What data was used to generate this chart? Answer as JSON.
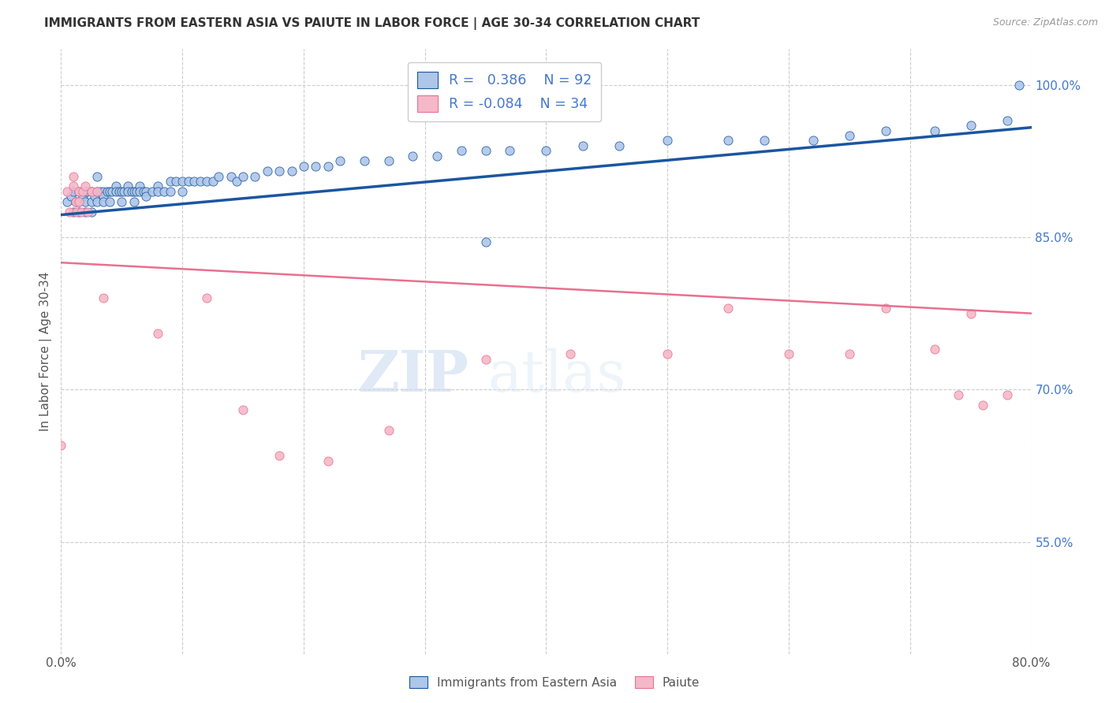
{
  "title": "IMMIGRANTS FROM EASTERN ASIA VS PAIUTE IN LABOR FORCE | AGE 30-34 CORRELATION CHART",
  "source": "Source: ZipAtlas.com",
  "ylabel": "In Labor Force | Age 30-34",
  "xlim": [
    0.0,
    0.8
  ],
  "ylim": [
    0.44,
    1.035
  ],
  "xticks": [
    0.0,
    0.1,
    0.2,
    0.3,
    0.4,
    0.5,
    0.6,
    0.7,
    0.8
  ],
  "xticklabels": [
    "0.0%",
    "",
    "",
    "",
    "",
    "",
    "",
    "",
    "80.0%"
  ],
  "yticks_right": [
    0.55,
    0.7,
    0.85,
    1.0
  ],
  "yticklabels_right": [
    "55.0%",
    "70.0%",
    "85.0%",
    "100.0%"
  ],
  "blue_R": 0.386,
  "blue_N": 92,
  "pink_R": -0.084,
  "pink_N": 34,
  "blue_color": "#aec6e8",
  "blue_line_color": "#1a56a0",
  "pink_color": "#f5b8c8",
  "pink_line_color": "#e87090",
  "legend_blue_label": "Immigrants from Eastern Asia",
  "legend_pink_label": "Paiute",
  "watermark_zip": "ZIP",
  "watermark_atlas": "atlas",
  "background_color": "#ffffff",
  "grid_color": "#cccccc",
  "title_color": "#333333",
  "axis_label_color": "#555555",
  "right_axis_color": "#4477cc",
  "blue_scatter_x": [
    0.005,
    0.008,
    0.01,
    0.01,
    0.012,
    0.015,
    0.015,
    0.015,
    0.018,
    0.02,
    0.02,
    0.02,
    0.022,
    0.025,
    0.025,
    0.025,
    0.028,
    0.03,
    0.03,
    0.03,
    0.032,
    0.035,
    0.035,
    0.035,
    0.038,
    0.04,
    0.04,
    0.042,
    0.045,
    0.045,
    0.048,
    0.05,
    0.05,
    0.052,
    0.055,
    0.055,
    0.058,
    0.06,
    0.06,
    0.062,
    0.065,
    0.065,
    0.068,
    0.07,
    0.07,
    0.075,
    0.08,
    0.08,
    0.085,
    0.09,
    0.09,
    0.095,
    0.1,
    0.1,
    0.105,
    0.11,
    0.115,
    0.12,
    0.125,
    0.13,
    0.14,
    0.145,
    0.15,
    0.16,
    0.17,
    0.18,
    0.19,
    0.2,
    0.21,
    0.22,
    0.23,
    0.25,
    0.27,
    0.29,
    0.31,
    0.33,
    0.35,
    0.37,
    0.4,
    0.43,
    0.46,
    0.5,
    0.55,
    0.58,
    0.62,
    0.65,
    0.68,
    0.72,
    0.75,
    0.78,
    0.35,
    0.79
  ],
  "blue_scatter_y": [
    0.885,
    0.89,
    0.875,
    0.895,
    0.885,
    0.895,
    0.885,
    0.875,
    0.89,
    0.895,
    0.885,
    0.875,
    0.895,
    0.895,
    0.885,
    0.875,
    0.89,
    0.91,
    0.895,
    0.885,
    0.895,
    0.895,
    0.89,
    0.885,
    0.895,
    0.895,
    0.885,
    0.895,
    0.9,
    0.895,
    0.895,
    0.895,
    0.885,
    0.895,
    0.9,
    0.895,
    0.895,
    0.895,
    0.885,
    0.895,
    0.9,
    0.895,
    0.895,
    0.895,
    0.89,
    0.895,
    0.9,
    0.895,
    0.895,
    0.905,
    0.895,
    0.905,
    0.905,
    0.895,
    0.905,
    0.905,
    0.905,
    0.905,
    0.905,
    0.91,
    0.91,
    0.905,
    0.91,
    0.91,
    0.915,
    0.915,
    0.915,
    0.92,
    0.92,
    0.92,
    0.925,
    0.925,
    0.925,
    0.93,
    0.93,
    0.935,
    0.935,
    0.935,
    0.935,
    0.94,
    0.94,
    0.945,
    0.945,
    0.945,
    0.945,
    0.95,
    0.955,
    0.955,
    0.96,
    0.965,
    0.845,
    1.0
  ],
  "pink_scatter_x": [
    0.0,
    0.005,
    0.007,
    0.01,
    0.01,
    0.012,
    0.013,
    0.015,
    0.015,
    0.017,
    0.018,
    0.02,
    0.022,
    0.025,
    0.03,
    0.035,
    0.08,
    0.12,
    0.15,
    0.18,
    0.22,
    0.27,
    0.35,
    0.42,
    0.5,
    0.55,
    0.6,
    0.65,
    0.68,
    0.72,
    0.74,
    0.75,
    0.76,
    0.78
  ],
  "pink_scatter_y": [
    0.645,
    0.895,
    0.875,
    0.91,
    0.9,
    0.885,
    0.875,
    0.895,
    0.885,
    0.875,
    0.895,
    0.9,
    0.875,
    0.895,
    0.895,
    0.79,
    0.755,
    0.79,
    0.68,
    0.635,
    0.63,
    0.66,
    0.73,
    0.735,
    0.735,
    0.78,
    0.735,
    0.735,
    0.78,
    0.74,
    0.695,
    0.775,
    0.685,
    0.695
  ],
  "blue_trend_x0": 0.0,
  "blue_trend_y0": 0.872,
  "blue_trend_x1": 0.8,
  "blue_trend_y1": 0.958,
  "pink_trend_x0": 0.0,
  "pink_trend_y0": 0.825,
  "pink_trend_x1": 0.8,
  "pink_trend_y1": 0.775,
  "figsize": [
    14.06,
    8.92
  ],
  "dpi": 100
}
